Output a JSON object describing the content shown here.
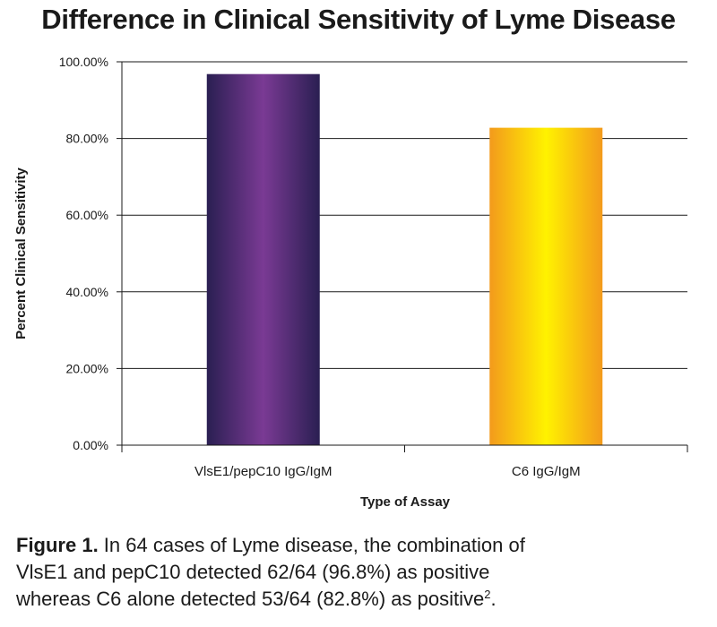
{
  "chart_data": {
    "type": "bar",
    "title": "Difference in Clinical Sensitivity of Lyme Disease",
    "xlabel": "Type of Assay",
    "ylabel": "Percent Clinical Sensitivity",
    "categories": [
      "VlsE1/pepC10 IgG/IgM",
      "C6 IgG/IgM"
    ],
    "values": [
      96.8,
      82.8
    ],
    "ylim": [
      0,
      100
    ],
    "yticks": [
      "0.00%",
      "20.00%",
      "40.00%",
      "60.00%",
      "80.00%",
      "100.00%"
    ],
    "grid": true,
    "legend": "none",
    "bar_colors": [
      {
        "edge": "#2a1f52",
        "center": "#7a3a94"
      },
      {
        "edge": "#f39a1c",
        "center": "#fff200"
      }
    ]
  },
  "caption": {
    "figure_label": "Figure 1.",
    "line1": " In 64 cases of Lyme disease, the combination of",
    "line2": "VlsE1 and pepC10 detected 62/64 (96.8%) as positive",
    "line3": "whereas C6 alone detected 53/64 (82.8%) as positive",
    "superscript": "2",
    "end": "."
  }
}
